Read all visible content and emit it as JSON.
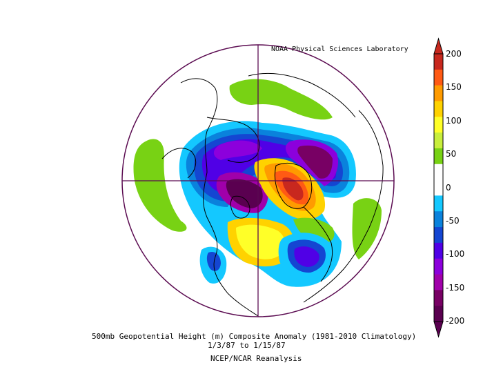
{
  "header": {
    "credit": "NOAA Physical Sciences Laboratory"
  },
  "footer": {
    "title": "500mb Geopotential Height (m) Composite Anomaly (1981-2010 Climatology)",
    "date_range": "1/3/87  to 1/15/87",
    "source": "NCEP/NCAR Reanalysis"
  },
  "colorbar": {
    "ticks": [
      "200",
      "150",
      "100",
      "50",
      "0",
      "-50",
      "-100",
      "-150",
      "-200"
    ],
    "colors": [
      "#c8281e",
      "#ff5a14",
      "#ff9b00",
      "#ffd200",
      "#ffff28",
      "#c8ee3c",
      "#78d214",
      "#ffffff",
      "#ffffff",
      "#14c8ff",
      "#0a82dc",
      "#1446d2",
      "#5000e6",
      "#8c00dc",
      "#a000aa",
      "#780064",
      "#5a0050"
    ]
  },
  "map": {
    "projection": "north-polar-stereographic",
    "colors": {
      "boundary": "#5a0a50",
      "coast": "#000000"
    }
  }
}
